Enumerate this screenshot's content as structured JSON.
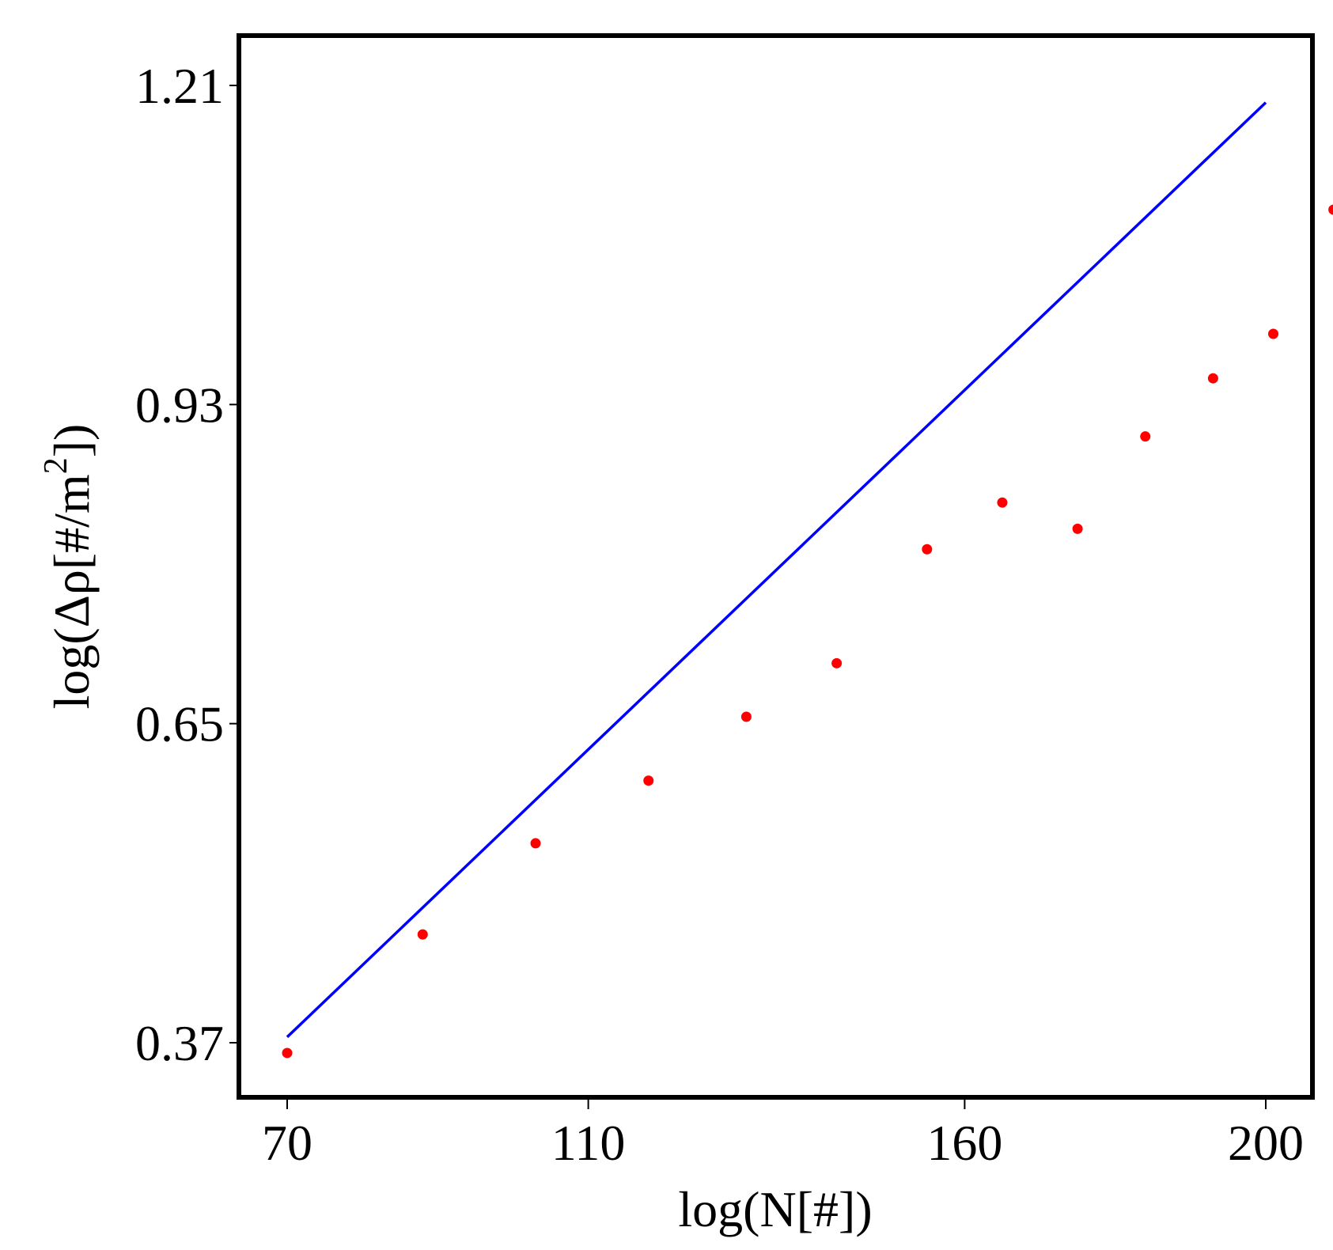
{
  "chart_data": {
    "type": "scatter",
    "title": "",
    "xlabel": "log(N[#])",
    "ylabel": "log(Δρ[#/m²])",
    "ylabel_parts": {
      "before": "log(Δρ[#/m",
      "sup": "2",
      "after": "])"
    },
    "x_ticks": [
      {
        "value": 70,
        "label": "70"
      },
      {
        "value": 110,
        "label": "110"
      },
      {
        "value": 160,
        "label": "160"
      },
      {
        "value": 200,
        "label": "200"
      }
    ],
    "y_ticks": [
      {
        "value": 0.37,
        "label": "0.37"
      },
      {
        "value": 0.65,
        "label": "0.65"
      },
      {
        "value": 0.93,
        "label": "0.93"
      },
      {
        "value": 1.21,
        "label": "1.21"
      }
    ],
    "xlim": [
      63,
      209
    ],
    "ylim": [
      0.33,
      1.27
    ],
    "grid": false,
    "points": [
      {
        "x": 70,
        "y": 0.361
      },
      {
        "x": 88,
        "y": 0.465
      },
      {
        "x": 103,
        "y": 0.545
      },
      {
        "x": 118,
        "y": 0.6
      },
      {
        "x": 131,
        "y": 0.656
      },
      {
        "x": 143,
        "y": 0.703
      },
      {
        "x": 155,
        "y": 0.803
      },
      {
        "x": 165,
        "y": 0.844
      },
      {
        "x": 175,
        "y": 0.821
      },
      {
        "x": 184,
        "y": 0.902
      },
      {
        "x": 193,
        "y": 0.953
      },
      {
        "x": 201,
        "y": 0.992
      },
      {
        "x": 209,
        "y": 1.101
      }
    ],
    "fit_line": {
      "x": [
        70,
        200
      ],
      "y": [
        0.375,
        1.195
      ]
    },
    "colors": {
      "points": "#ff0000",
      "fit_line": "#0000ff",
      "frame": "#000000"
    }
  }
}
